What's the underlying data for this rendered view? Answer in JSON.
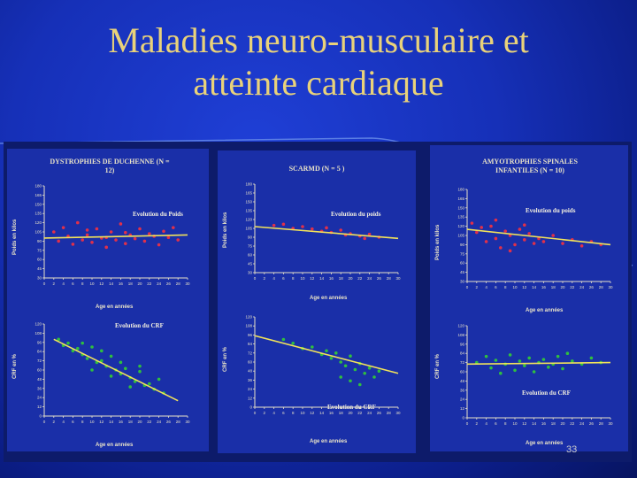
{
  "slide": {
    "title_line1": "Maladies neuro-musculaire et",
    "title_line2": "atteinte cardiaque",
    "page_number": "33",
    "colors": {
      "title": "#e9d27a",
      "background": "#1630b8",
      "weight_points": "#e0304a",
      "crp_points": "#2fbf3f",
      "fit_line": "#f2e35a"
    }
  },
  "chart_data": [
    {
      "type": "scatter",
      "group": "DYSTROPHIES DE DUCHENNE (N = 12)",
      "title": "DYSTROPHIES DE DUCHENNE (N = 12)",
      "annotation": "Evolution du Poids",
      "xlabel": "Age en années",
      "ylabel": "Poids en kilos",
      "ylim": [
        30,
        180
      ],
      "xlim": [
        0,
        30
      ],
      "trend": {
        "x": [
          0,
          30
        ],
        "y": [
          95,
          100
        ]
      },
      "points": [
        [
          2,
          105
        ],
        [
          3,
          90
        ],
        [
          4,
          112
        ],
        [
          5,
          98
        ],
        [
          6,
          85
        ],
        [
          7,
          120
        ],
        [
          8,
          92
        ],
        [
          9,
          100
        ],
        [
          10,
          88
        ],
        [
          11,
          110
        ],
        [
          12,
          95
        ],
        [
          13,
          80
        ],
        [
          14,
          105
        ],
        [
          15,
          92
        ],
        [
          16,
          118
        ],
        [
          17,
          86
        ],
        [
          18,
          100
        ],
        [
          19,
          94
        ],
        [
          20,
          110
        ],
        [
          21,
          90
        ],
        [
          22,
          102
        ],
        [
          23,
          98
        ],
        [
          24,
          84
        ],
        [
          25,
          106
        ],
        [
          26,
          96
        ],
        [
          27,
          112
        ],
        [
          28,
          92
        ],
        [
          9,
          108
        ],
        [
          13,
          96
        ],
        [
          17,
          104
        ]
      ]
    },
    {
      "type": "scatter",
      "group": "DYSTROPHIES DE DUCHENNE (N = 12)",
      "annotation": "Evolution du CRF",
      "xlabel": "Age en années",
      "ylabel": "CRF en %",
      "ylim": [
        0,
        120
      ],
      "xlim": [
        0,
        30
      ],
      "trend": {
        "x": [
          2,
          28
        ],
        "y": [
          100,
          20
        ]
      },
      "points": [
        [
          3,
          100
        ],
        [
          4,
          92
        ],
        [
          5,
          95
        ],
        [
          6,
          85
        ],
        [
          7,
          88
        ],
        [
          8,
          80
        ],
        [
          9,
          75
        ],
        [
          10,
          90
        ],
        [
          11,
          70
        ],
        [
          12,
          72
        ],
        [
          13,
          65
        ],
        [
          14,
          78
        ],
        [
          15,
          60
        ],
        [
          16,
          55
        ],
        [
          17,
          62
        ],
        [
          18,
          50
        ],
        [
          19,
          45
        ],
        [
          20,
          58
        ],
        [
          21,
          40
        ],
        [
          22,
          42
        ],
        [
          23,
          35
        ],
        [
          24,
          48
        ],
        [
          25,
          30
        ],
        [
          8,
          95
        ],
        [
          12,
          85
        ],
        [
          16,
          70
        ],
        [
          20,
          65
        ],
        [
          14,
          52
        ],
        [
          18,
          38
        ],
        [
          10,
          60
        ]
      ]
    },
    {
      "type": "scatter",
      "group": "SCARMD (N = 5 )",
      "title": "SCARMD (N = 5 )",
      "annotation": "Evolution du poids",
      "xlabel": "Age en années",
      "ylabel": "Poids en kilos",
      "ylim": [
        30,
        180
      ],
      "xlim": [
        0,
        30
      ],
      "trend": {
        "x": [
          0,
          30
        ],
        "y": [
          108,
          88
        ]
      },
      "points": [
        [
          4,
          110
        ],
        [
          6,
          112
        ],
        [
          8,
          105
        ],
        [
          10,
          108
        ],
        [
          12,
          104
        ],
        [
          14,
          100
        ],
        [
          16,
          98
        ],
        [
          18,
          102
        ],
        [
          20,
          96
        ],
        [
          22,
          92
        ],
        [
          24,
          95
        ],
        [
          26,
          90
        ],
        [
          15,
          106
        ],
        [
          19,
          94
        ],
        [
          23,
          88
        ]
      ]
    },
    {
      "type": "scatter",
      "group": "SCARMD (N = 5 )",
      "annotation": "Evolution du CRF",
      "xlabel": "Age en années",
      "ylabel": "CRF en %",
      "ylim": [
        0,
        120
      ],
      "xlim": [
        0,
        30
      ],
      "trend": {
        "x": [
          0,
          30
        ],
        "y": [
          95,
          45
        ]
      },
      "points": [
        [
          6,
          90
        ],
        [
          8,
          85
        ],
        [
          10,
          78
        ],
        [
          12,
          80
        ],
        [
          14,
          70
        ],
        [
          15,
          75
        ],
        [
          16,
          65
        ],
        [
          17,
          72
        ],
        [
          18,
          60
        ],
        [
          19,
          55
        ],
        [
          20,
          68
        ],
        [
          21,
          50
        ],
        [
          22,
          58
        ],
        [
          23,
          45
        ],
        [
          24,
          52
        ],
        [
          25,
          40
        ],
        [
          26,
          48
        ],
        [
          18,
          40
        ],
        [
          20,
          35
        ],
        [
          22,
          30
        ]
      ]
    },
    {
      "type": "scatter",
      "group": "AMYOTROPHIES SPINALES INFANTILES (N = 10)",
      "title": "AMYOTROPHIES SPINALES INFANTILES (N = 10)",
      "annotation": "Evolution du poids",
      "xlabel": "Age en années",
      "ylabel": "Poids en kilos",
      "ylim": [
        30,
        180
      ],
      "xlim": [
        0,
        30
      ],
      "trend": {
        "x": [
          0,
          30
        ],
        "y": [
          115,
          90
        ]
      },
      "points": [
        [
          1,
          125
        ],
        [
          2,
          110
        ],
        [
          3,
          118
        ],
        [
          4,
          95
        ],
        [
          5,
          120
        ],
        [
          6,
          100
        ],
        [
          7,
          85
        ],
        [
          8,
          112
        ],
        [
          9,
          105
        ],
        [
          10,
          90
        ],
        [
          11,
          115
        ],
        [
          12,
          98
        ],
        [
          13,
          108
        ],
        [
          14,
          92
        ],
        [
          15,
          100
        ],
        [
          16,
          95
        ],
        [
          18,
          105
        ],
        [
          20,
          92
        ],
        [
          22,
          98
        ],
        [
          24,
          88
        ],
        [
          26,
          95
        ],
        [
          28,
          90
        ],
        [
          6,
          130
        ],
        [
          9,
          80
        ],
        [
          12,
          122
        ]
      ]
    },
    {
      "type": "scatter",
      "group": "AMYOTROPHIES SPINALES INFANTILES (N = 10)",
      "annotation": "Evolution du CRF",
      "xlabel": "Age en années",
      "ylabel": "CRF en %",
      "ylim": [
        0,
        120
      ],
      "xlim": [
        0,
        30
      ],
      "trend": {
        "x": [
          0,
          30
        ],
        "y": [
          70,
          72
        ]
      },
      "points": [
        [
          2,
          72
        ],
        [
          4,
          80
        ],
        [
          5,
          65
        ],
        [
          6,
          75
        ],
        [
          8,
          70
        ],
        [
          9,
          82
        ],
        [
          10,
          62
        ],
        [
          11,
          74
        ],
        [
          12,
          68
        ],
        [
          13,
          78
        ],
        [
          14,
          60
        ],
        [
          15,
          72
        ],
        [
          16,
          76
        ],
        [
          17,
          66
        ],
        [
          18,
          70
        ],
        [
          19,
          80
        ],
        [
          20,
          64
        ],
        [
          22,
          74
        ],
        [
          24,
          70
        ],
        [
          26,
          78
        ],
        [
          28,
          72
        ],
        [
          7,
          58
        ],
        [
          21,
          84
        ]
      ]
    }
  ]
}
